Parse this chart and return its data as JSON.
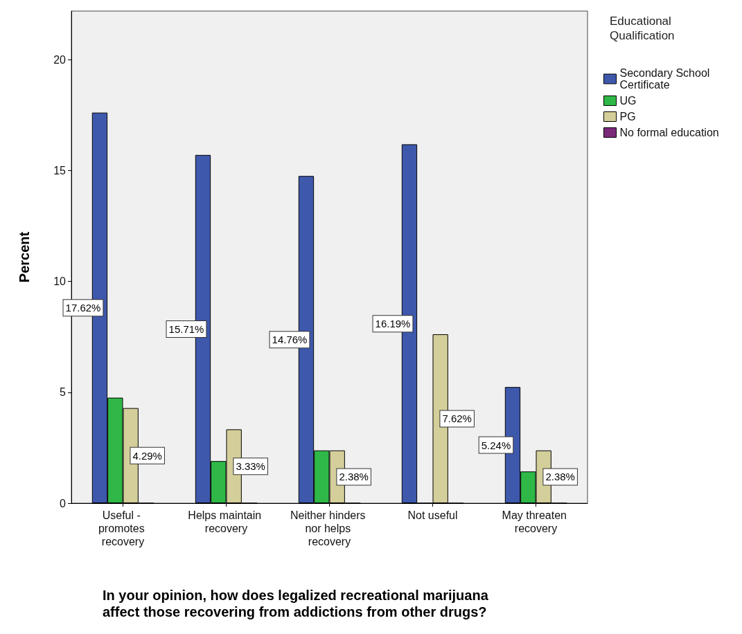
{
  "chart_data": {
    "type": "bar",
    "xlabel": "In your opinion, how does legalized recreational marijuana affect those recovering from addictions from other drugs?",
    "ylabel": "Percent",
    "legend_title": "Educational Qualification",
    "categories": [
      "Useful - promotes recovery",
      "Helps maintain recovery",
      "Neither hinders nor helps recovery",
      "Not useful",
      "May threaten recovery"
    ],
    "series": [
      {
        "name": "Secondary School Certificate",
        "color": "#3e58ac",
        "values": [
          17.62,
          15.71,
          14.76,
          16.19,
          5.24
        ],
        "value_labels": [
          "17.62%",
          "15.71%",
          "14.76%",
          "16.19%",
          "5.24%"
        ]
      },
      {
        "name": "UG",
        "color": "#2fb847",
        "values": [
          4.76,
          1.9,
          2.38,
          0,
          1.43
        ],
        "value_labels": [
          null,
          null,
          null,
          null,
          null
        ]
      },
      {
        "name": "PG",
        "color": "#d4cf9a",
        "values": [
          4.29,
          3.33,
          2.38,
          7.62,
          2.38
        ],
        "value_labels": [
          "4.29%",
          "3.33%",
          "2.38%",
          "7.62%",
          "2.38%"
        ]
      },
      {
        "name": "No formal education",
        "color": "#7b2a7b",
        "values": [
          0,
          0,
          0,
          0,
          0
        ],
        "value_labels": [
          null,
          null,
          null,
          null,
          null
        ]
      }
    ],
    "ylim": [
      0,
      22.2
    ],
    "yticks": [
      0,
      5,
      10,
      15,
      20
    ],
    "legend": "top right"
  }
}
